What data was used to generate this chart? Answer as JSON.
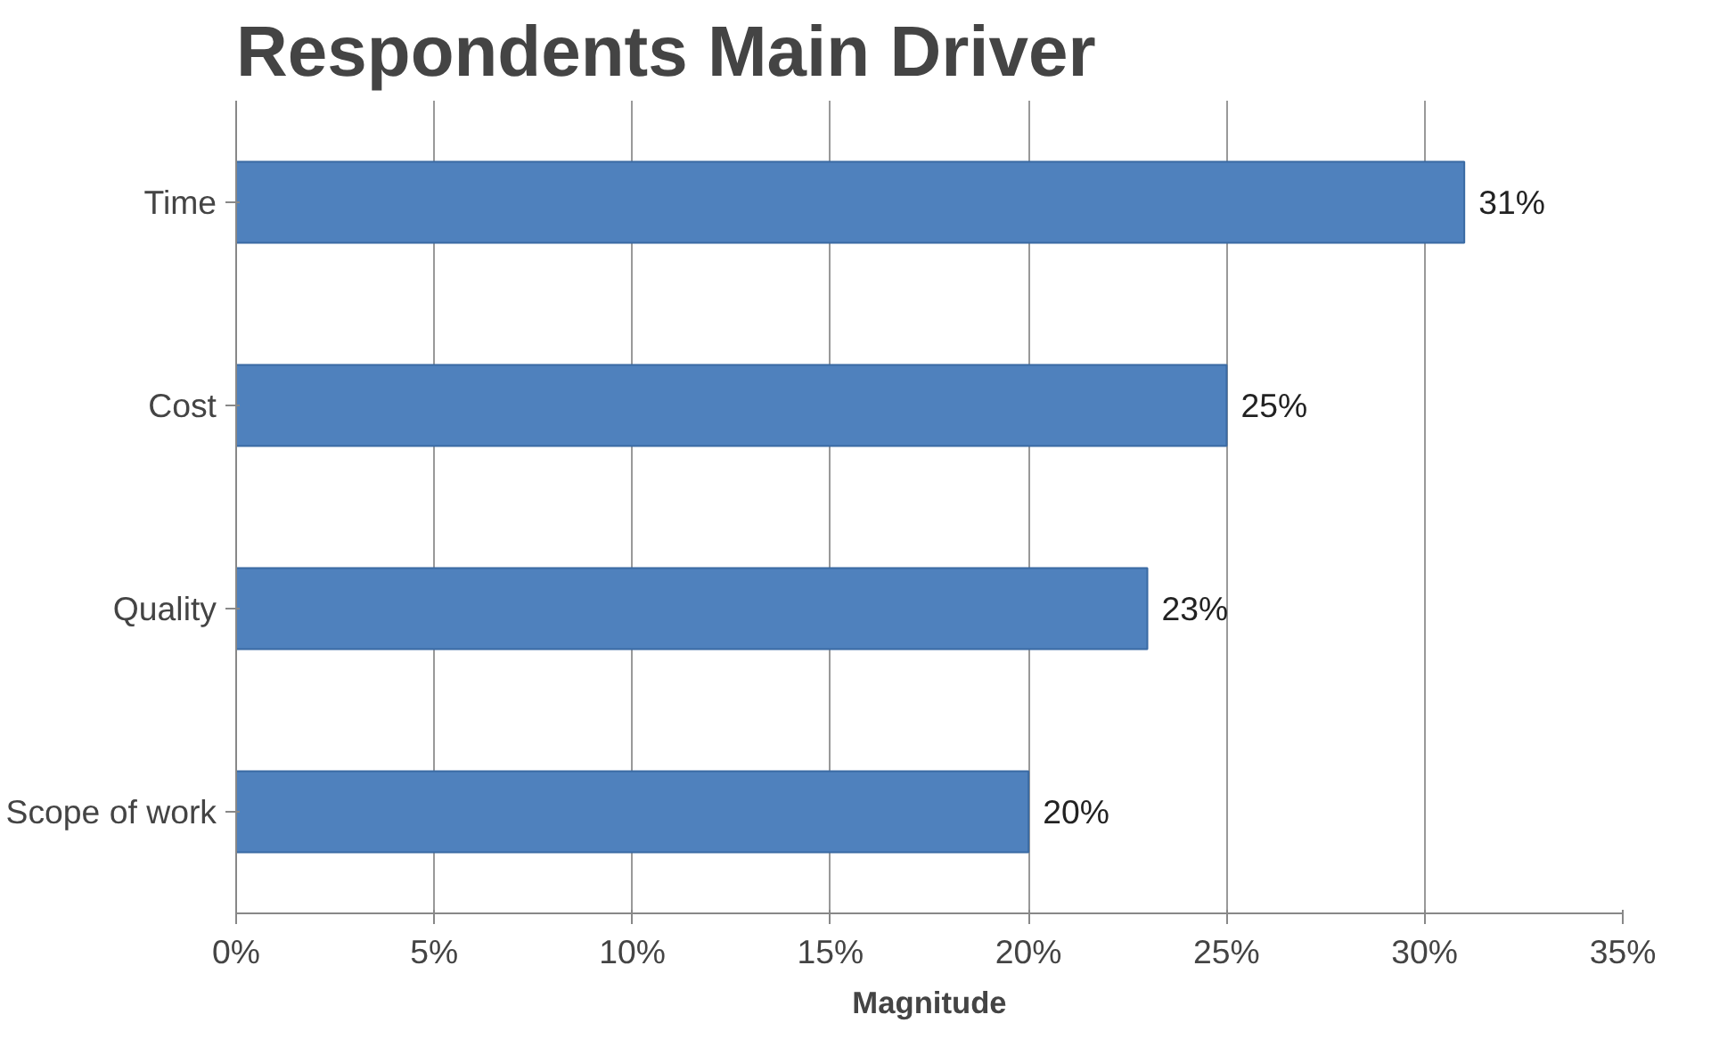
{
  "chart_data": {
    "type": "bar",
    "orientation": "horizontal",
    "title": "Respondents Main Driver",
    "xlabel": "Magnitude",
    "categories": [
      "Time",
      "Cost",
      "Quality",
      "Scope of work"
    ],
    "values": [
      31,
      25,
      23,
      20
    ],
    "value_labels": [
      "31%",
      "25%",
      "23%",
      "20%"
    ],
    "color": "#4f81bd",
    "xlim": [
      0,
      35
    ],
    "xticks": [
      {
        "value": 0,
        "label": "0%"
      },
      {
        "value": 5,
        "label": "5%"
      },
      {
        "value": 10,
        "label": "10%"
      },
      {
        "value": 15,
        "label": "15%"
      },
      {
        "value": 20,
        "label": "20%"
      },
      {
        "value": 25,
        "label": "25%"
      },
      {
        "value": 30,
        "label": "30%"
      },
      {
        "value": 35,
        "label": "35%"
      }
    ],
    "grid": "x"
  }
}
